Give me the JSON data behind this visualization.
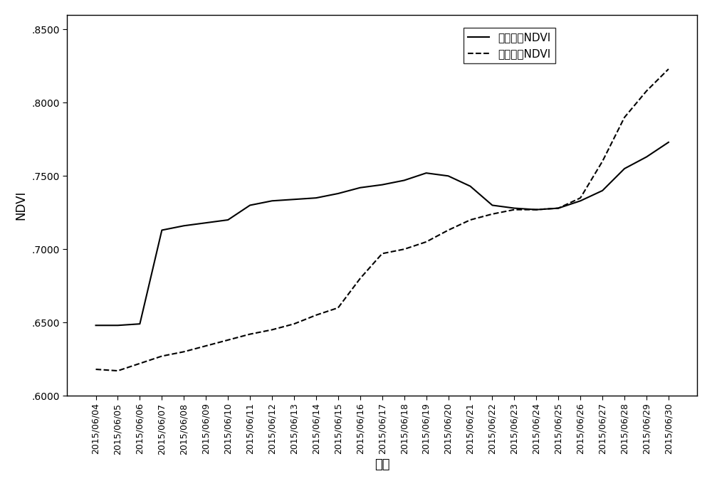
{
  "dates": [
    "2015/06/04",
    "2015/06/05",
    "2015/06/06",
    "2015/06/07",
    "2015/06/08",
    "2015/06/09",
    "2015/06/10",
    "2015/06/11",
    "2015/06/12",
    "2015/06/13",
    "2015/06/14",
    "2015/06/15",
    "2015/06/16",
    "2015/06/17",
    "2015/06/18",
    "2015/06/19",
    "2015/06/20",
    "2015/06/21",
    "2015/06/22",
    "2015/06/23",
    "2015/06/24",
    "2015/06/25",
    "2015/06/26",
    "2015/06/27",
    "2015/06/28",
    "2015/06/29",
    "2015/06/30"
  ],
  "leaf_ndvi": [
    0.648,
    0.648,
    0.649,
    0.713,
    0.716,
    0.718,
    0.72,
    0.73,
    0.733,
    0.734,
    0.735,
    0.738,
    0.742,
    0.744,
    0.747,
    0.752,
    0.75,
    0.743,
    0.73,
    0.728,
    0.727,
    0.728,
    0.733,
    0.74,
    0.755,
    0.763,
    0.773
  ],
  "canopy_ndvi": [
    0.618,
    0.617,
    0.622,
    0.627,
    0.63,
    0.634,
    0.638,
    0.642,
    0.645,
    0.649,
    0.655,
    0.66,
    0.68,
    0.697,
    0.7,
    0.705,
    0.713,
    0.72,
    0.724,
    0.727,
    0.727,
    0.728,
    0.735,
    0.76,
    0.79,
    0.808,
    0.823
  ],
  "ylim": [
    0.6,
    0.86
  ],
  "yticks": [
    0.6,
    0.65,
    0.7,
    0.75,
    0.8,
    0.85
  ],
  "ylabel": "NDVI",
  "xlabel": "日期",
  "legend_leaf": "水稻叶片NDVI",
  "legend_canopy": "水稻冠层NDVI",
  "line_color": "#000000",
  "background_color": "#ffffff",
  "font_size": 11
}
